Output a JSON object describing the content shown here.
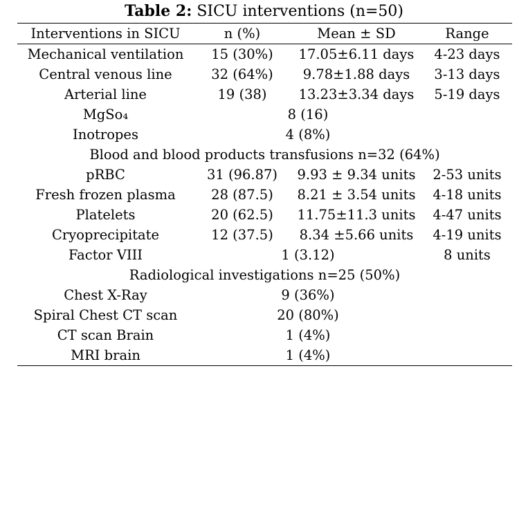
{
  "caption": {
    "label": "Table 2:",
    "text": " SICU interventions (n=50)"
  },
  "headers": [
    "Interventions in SICU",
    "n (%)",
    "Mean ± SD",
    "Range"
  ],
  "rows": {
    "mechanical_ventilation": [
      "Mechanical ventilation",
      "15 (30%)",
      "17.05±6.11 days",
      "4-23 days"
    ],
    "central_venous_line": [
      "Central venous line",
      "32 (64%)",
      "9.78±1.88 days",
      "3-13 days"
    ],
    "arterial_line": [
      "Arterial line",
      "19 (38)",
      "13.23±3.34 days",
      "5-19 days"
    ],
    "mgso4": [
      "MgSo₄",
      "8 (16)"
    ],
    "inotropes": [
      "Inotropes",
      "4 (8%)"
    ],
    "blood_section": "Blood and blood products transfusions n=32 (64%)",
    "prbc": [
      "pRBC",
      "31 (96.87)",
      "9.93 ± 9.34 units",
      "2-53 units"
    ],
    "ffp": [
      "Fresh frozen plasma",
      "28 (87.5)",
      "8.21 ± 3.54 units",
      "4-18 units"
    ],
    "platelets": [
      "Platelets",
      "20 (62.5)",
      "11.75±11.3 units",
      "4-47 units"
    ],
    "cryo": [
      "Cryoprecipitate",
      "12 (37.5)",
      "8.34 ±5.66 units",
      "4-19 units"
    ],
    "factor_viii": [
      "Factor VIII",
      "1 (3.12)",
      "8 units"
    ],
    "radiology_section": "Radiological investigations n=25 (50%)",
    "chest_xray": [
      "Chest X-Ray",
      "9 (36%)"
    ],
    "spiral_ct": [
      "Spiral Chest CT scan",
      "20 (80%)"
    ],
    "ct_brain": [
      "CT scan Brain",
      "1 (4%)"
    ],
    "mri_brain": [
      "MRI brain",
      "1 (4%)"
    ]
  }
}
